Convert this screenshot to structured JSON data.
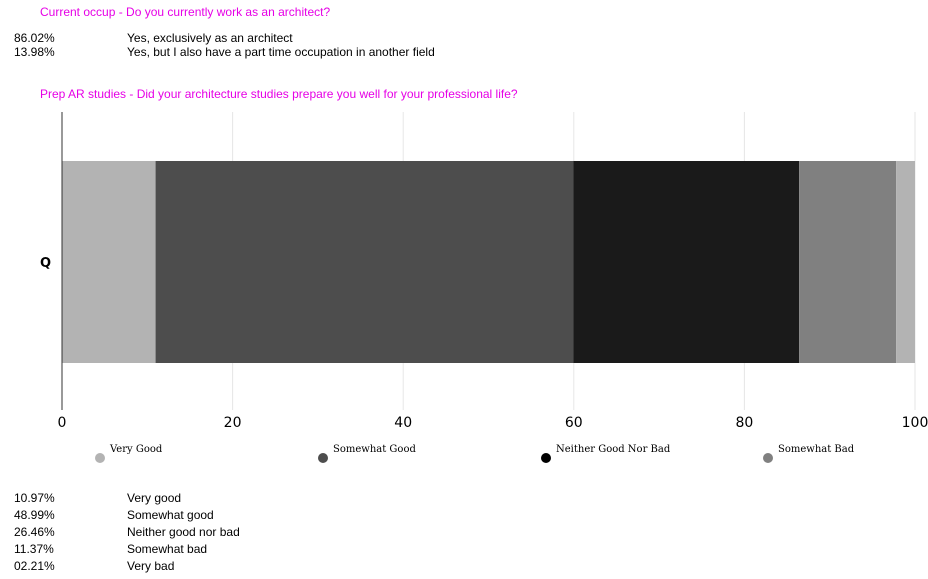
{
  "question1": {
    "title": "Current occup - Do you currently work as an architect?",
    "rows": [
      {
        "pct": "86.02%",
        "label": "Yes, exclusively as an architect"
      },
      {
        "pct": "13.98%",
        "label": "Yes, but I also have a part time occupation in another field"
      }
    ]
  },
  "question2": {
    "title": "Prep AR studies - Did your architecture studies prepare you well for your professional life?",
    "rows": [
      {
        "pct": "10.97%",
        "label": "Very good"
      },
      {
        "pct": "48.99%",
        "label": "Somewhat good"
      },
      {
        "pct": "26.46%",
        "label": "Neither good nor bad"
      },
      {
        "pct": "11.37%",
        "label": "Somewhat bad"
      },
      {
        "pct": "02.21%",
        "label": "Very bad"
      }
    ]
  },
  "chart_data": {
    "type": "bar",
    "orientation": "horizontal",
    "stacked": true,
    "categories": [
      "Q"
    ],
    "series": [
      {
        "name": "Very Good",
        "values": [
          10.97
        ],
        "color": "#b3b3b3"
      },
      {
        "name": "Somewhat Good",
        "values": [
          48.99
        ],
        "color": "#4d4d4d"
      },
      {
        "name": "Neither Good Nor Bad",
        "values": [
          26.46
        ],
        "color": "#1a1a1a"
      },
      {
        "name": "Somewhat Bad",
        "values": [
          11.37
        ],
        "color": "#808080"
      },
      {
        "values": [
          2.21
        ],
        "color": "#b3b3b3"
      }
    ],
    "xlim": [
      0,
      100
    ],
    "xticks": [
      0,
      20,
      40,
      60,
      80,
      100
    ],
    "grid": true,
    "legend_position": "bottom",
    "legend_marker_colors": [
      "#b3b3b3",
      "#4d4d4d",
      "#000000",
      "#808080"
    ]
  }
}
